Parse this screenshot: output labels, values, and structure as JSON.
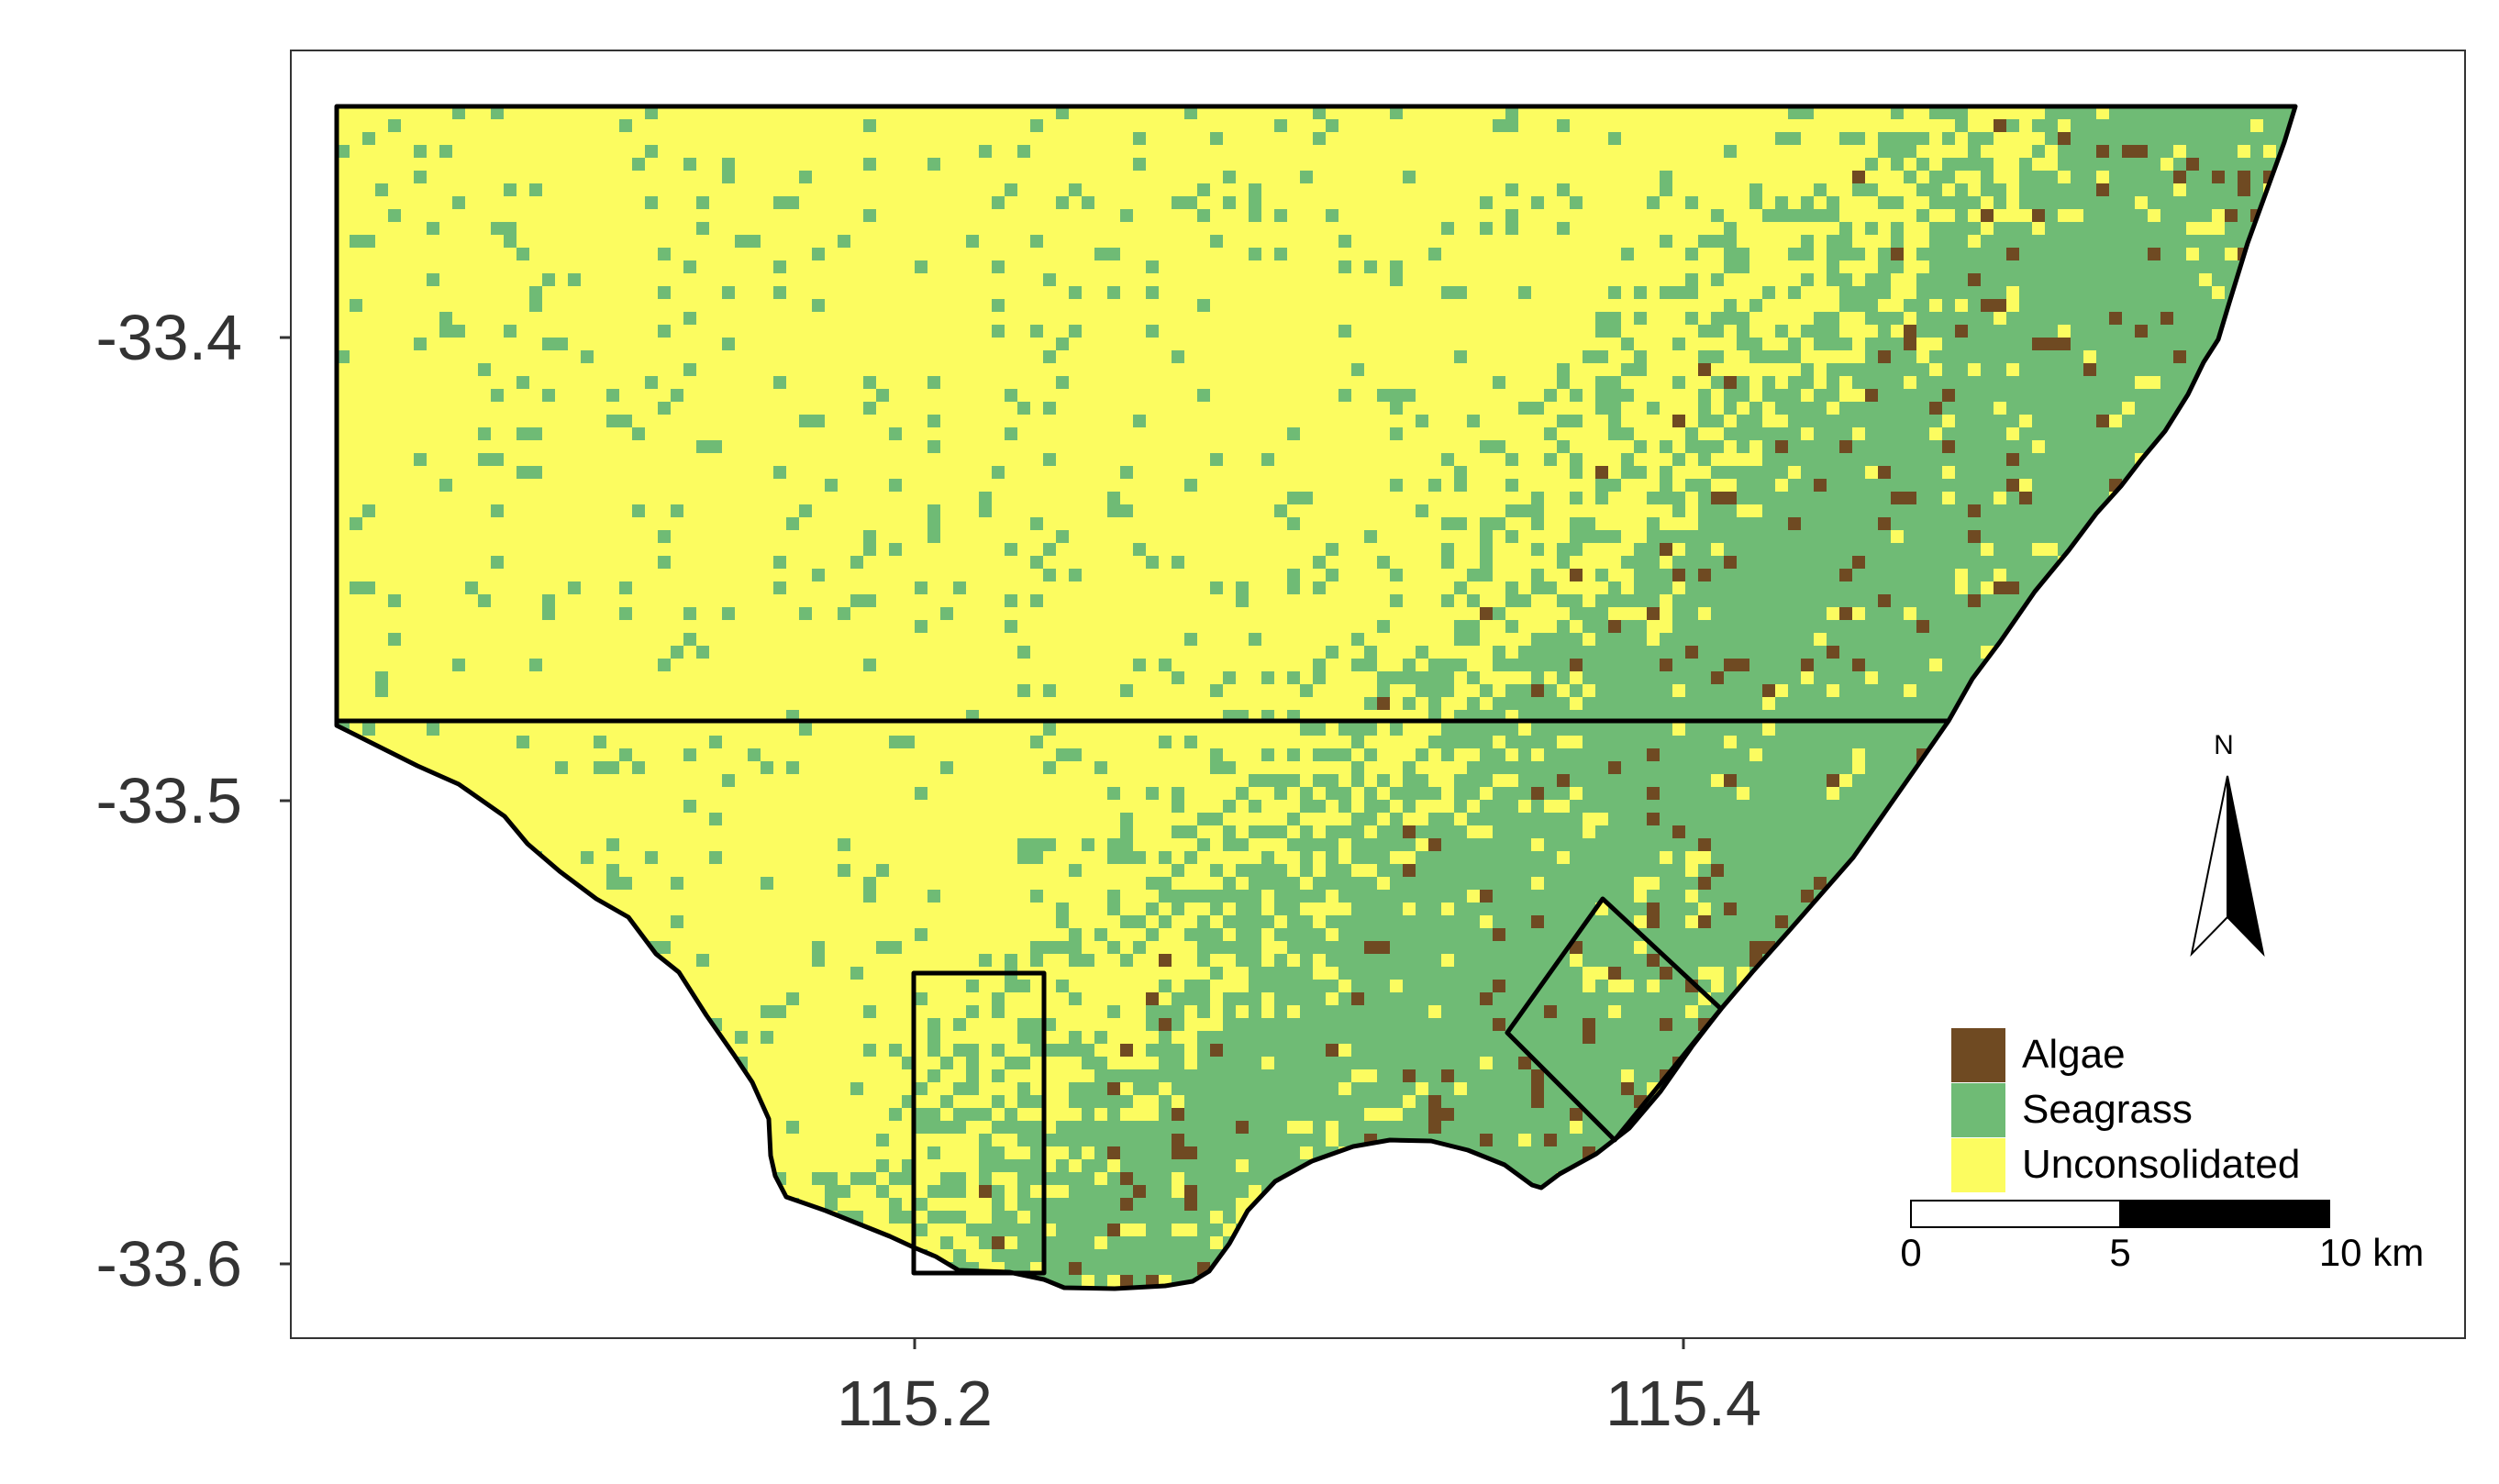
{
  "axes": {
    "y_labels": [
      "-33.4",
      "-33.5",
      "-33.6"
    ],
    "x_labels": [
      "115.2",
      "115.4"
    ]
  },
  "legend": {
    "items": [
      {
        "label": "Algae",
        "color": "#6f4a22"
      },
      {
        "label": "Seagrass",
        "color": "#6fbb75"
      },
      {
        "label": "Unconsolidated",
        "color": "#fcfc60"
      }
    ]
  },
  "scale_bar": {
    "ticks": [
      "0",
      "5",
      "10 km"
    ]
  },
  "north_arrow": {
    "label": "N"
  },
  "colors": {
    "unconsolidated": "#fcfc60",
    "seagrass": "#6fbb75",
    "algae": "#6f4a22",
    "outline": "#000000"
  }
}
